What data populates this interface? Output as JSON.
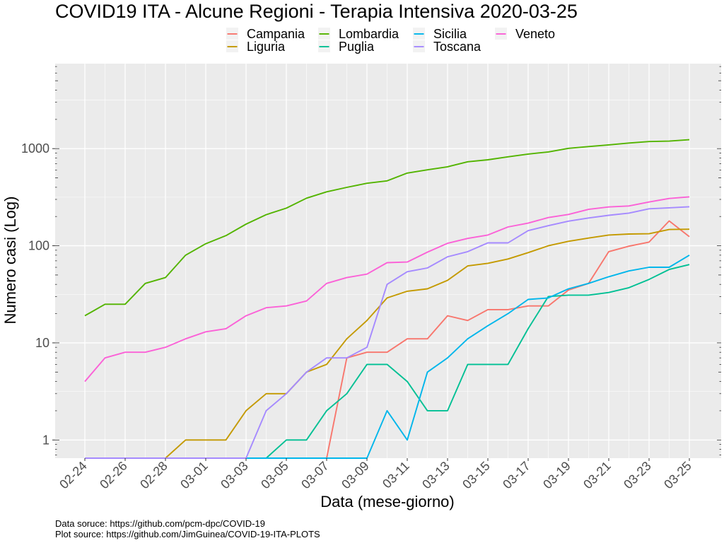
{
  "chart_data": {
    "type": "line",
    "title": "COVID19 ITA - Alcune Regioni - Terapia Intensiva 2020-03-25",
    "xlabel": "Data (mese-giorno)",
    "ylabel": "Numero casi (Log)",
    "y_scale": "log10",
    "ylim": [
      0.65,
      7500
    ],
    "y_ticks": [
      1,
      10,
      100,
      1000
    ],
    "y_tick_labels": [
      "1",
      "10",
      "100",
      "1000"
    ],
    "x": [
      "02-24",
      "02-25",
      "02-26",
      "02-27",
      "02-28",
      "02-29",
      "03-01",
      "03-02",
      "03-03",
      "03-04",
      "03-05",
      "03-06",
      "03-07",
      "03-08",
      "03-09",
      "03-10",
      "03-11",
      "03-12",
      "03-13",
      "03-14",
      "03-15",
      "03-16",
      "03-17",
      "03-18",
      "03-19",
      "03-20",
      "03-21",
      "03-22",
      "03-23",
      "03-24",
      "03-25"
    ],
    "x_tick_labels": [
      "02-24",
      "02-26",
      "02-28",
      "03-01",
      "03-03",
      "03-05",
      "03-07",
      "03-09",
      "03-11",
      "03-13",
      "03-15",
      "03-17",
      "03-19",
      "03-21",
      "03-23",
      "03-25"
    ],
    "grid": true,
    "legend_position": "top",
    "series": [
      {
        "name": "Campania",
        "color": "#F8766D",
        "values": [
          0,
          0,
          0,
          0,
          0,
          0,
          0,
          0,
          0,
          0,
          0,
          0,
          0,
          7,
          8,
          8,
          11,
          11,
          19,
          17,
          22,
          22,
          24,
          24,
          35,
          41,
          87,
          99,
          109,
          180,
          124
        ]
      },
      {
        "name": "Liguria",
        "color": "#C49A00",
        "values": [
          0,
          0,
          0,
          0,
          0,
          1,
          1,
          1,
          2,
          3,
          3,
          5,
          6,
          11,
          17,
          29,
          34,
          36,
          44,
          62,
          66,
          73,
          85,
          100,
          111,
          120,
          129,
          132,
          133,
          147,
          148
        ]
      },
      {
        "name": "Lombardia",
        "color": "#53B400",
        "values": [
          19,
          25,
          25,
          41,
          47,
          80,
          105,
          127,
          167,
          209,
          244,
          309,
          359,
          399,
          440,
          466,
          560,
          605,
          650,
          732,
          767,
          823,
          879,
          925,
          1006,
          1050,
          1093,
          1142,
          1183,
          1194,
          1236
        ]
      },
      {
        "name": "Puglia",
        "color": "#00C094",
        "values": [
          0,
          0,
          0,
          0,
          0,
          0,
          0,
          0,
          0,
          0,
          1,
          1,
          2,
          3,
          6,
          6,
          4,
          2,
          2,
          6,
          6,
          6,
          14,
          30,
          31,
          31,
          33,
          37,
          45,
          57,
          64
        ]
      },
      {
        "name": "Sicilia",
        "color": "#00B6EB",
        "values": [
          0,
          0,
          0,
          0,
          0,
          0,
          0,
          0,
          0,
          0,
          0,
          0,
          0,
          0,
          0,
          2,
          1,
          5,
          7,
          11,
          15,
          20,
          28,
          29,
          36,
          41,
          48,
          55,
          60,
          60,
          80
        ]
      },
      {
        "name": "Toscana",
        "color": "#A58AFF",
        "values": [
          0,
          0,
          0,
          0,
          0,
          0,
          0,
          0,
          0,
          2,
          3,
          5,
          7,
          7,
          9,
          40,
          54,
          59,
          77,
          87,
          107,
          107,
          143,
          161,
          179,
          193,
          206,
          217,
          240,
          246,
          252
        ]
      },
      {
        "name": "Veneto",
        "color": "#FB61D7",
        "values": [
          4,
          7,
          8,
          8,
          9,
          11,
          13,
          14,
          19,
          23,
          24,
          27,
          41,
          47,
          51,
          67,
          68,
          86,
          106,
          119,
          129,
          156,
          171,
          195,
          210,
          237,
          251,
          257,
          282,
          307,
          319
        ]
      }
    ]
  },
  "caption": {
    "line1": "Data soruce: https://github.com/pcm-dpc/COVID-19",
    "line2": "Plot source: https://github.com/JimGuinea/COVID-19-ITA-PLOTS"
  }
}
